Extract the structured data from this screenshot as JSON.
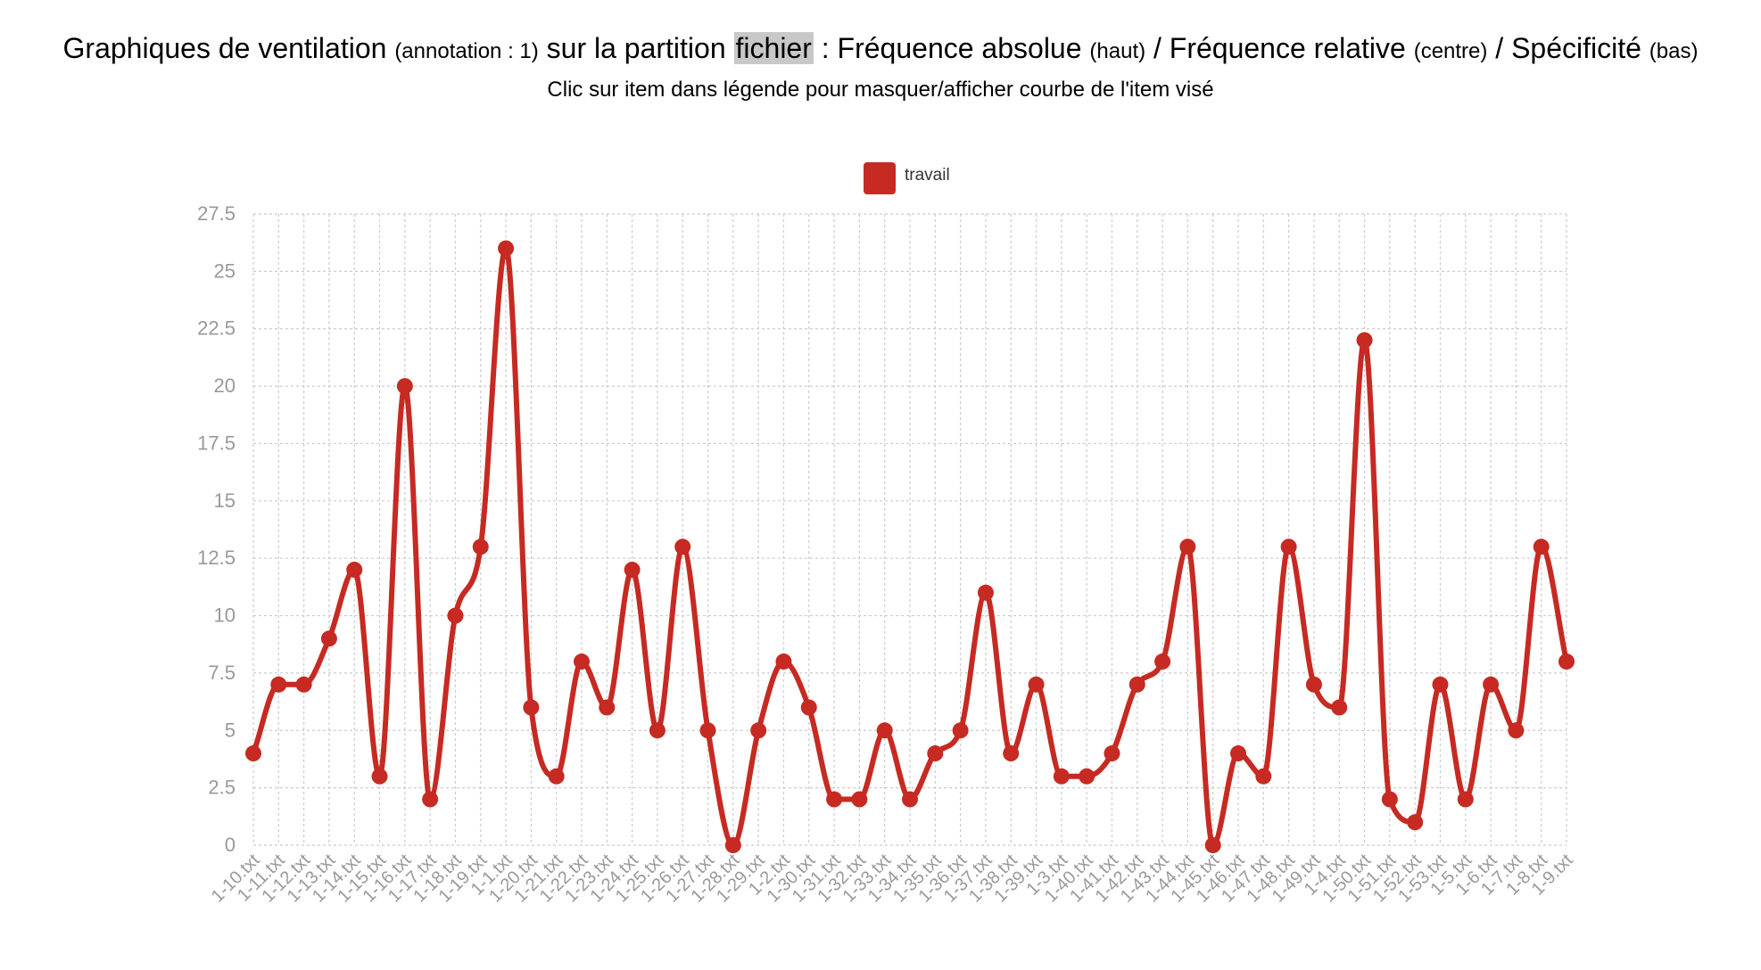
{
  "header": {
    "t1": "Graphiques de ventilation",
    "t2": "(annotation : 1)",
    "t3": "sur la partition",
    "t4": "fichier",
    "t5": ": Fréquence absolue",
    "t6": "(haut)",
    "t7": "/ Fréquence relative",
    "t8": "(centre)",
    "t9": "/ Spécificité",
    "t10": "(bas)",
    "subtitle": "Clic sur item dans légende pour masquer/afficher courbe de l'item visé"
  },
  "colors": {
    "series": "#c62a22",
    "grid": "#cccccc",
    "tick": "#999999"
  },
  "chart_data": {
    "type": "line",
    "legend": "top-center",
    "grid": true,
    "ylim": [
      0,
      27.5
    ],
    "yticks": [
      "0",
      "2.5",
      "5",
      "7.5",
      "10",
      "12.5",
      "15",
      "17.5",
      "20",
      "22.5",
      "25",
      "27.5"
    ],
    "categories": [
      "1-10.txt",
      "1-11.txt",
      "1-12.txt",
      "1-13.txt",
      "1-14.txt",
      "1-15.txt",
      "1-16.txt",
      "1-17.txt",
      "1-18.txt",
      "1-19.txt",
      "1-1.txt",
      "1-20.txt",
      "1-21.txt",
      "1-22.txt",
      "1-23.txt",
      "1-24.txt",
      "1-25.txt",
      "1-26.txt",
      "1-27.txt",
      "1-28.txt",
      "1-29.txt",
      "1-2.txt",
      "1-30.txt",
      "1-31.txt",
      "1-32.txt",
      "1-33.txt",
      "1-34.txt",
      "1-35.txt",
      "1-36.txt",
      "1-37.txt",
      "1-38.txt",
      "1-39.txt",
      "1-3.txt",
      "1-40.txt",
      "1-41.txt",
      "1-42.txt",
      "1-43.txt",
      "1-44.txt",
      "1-45.txt",
      "1-46.txt",
      "1-47.txt",
      "1-48.txt",
      "1-49.txt",
      "1-4.txt",
      "1-50.txt",
      "1-51.txt",
      "1-52.txt",
      "1-53.txt",
      "1-5.txt",
      "1-6.txt",
      "1-7.txt",
      "1-8.txt",
      "1-9.txt"
    ],
    "series": [
      {
        "name": "travail",
        "values": [
          4,
          7,
          7,
          9,
          12,
          3,
          20,
          2,
          10,
          13,
          26,
          6,
          3,
          8,
          6,
          12,
          5,
          13,
          5,
          0,
          5,
          8,
          6,
          2,
          2,
          5,
          2,
          4,
          5,
          11,
          4,
          7,
          3,
          3,
          4,
          7,
          8,
          13,
          0,
          4,
          3,
          13,
          7,
          6,
          22,
          2,
          1,
          7,
          2,
          7,
          5,
          13,
          8
        ]
      }
    ]
  }
}
